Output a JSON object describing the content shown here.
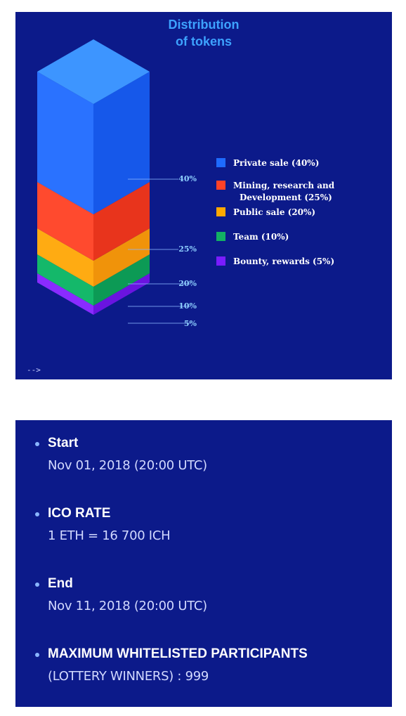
{
  "chart": {
    "title_line1": "Distribution",
    "title_line2": "of tokens",
    "stray_text": "-->"
  },
  "chart_data": {
    "type": "bar",
    "title": "Distribution of tokens",
    "categories": [
      "Private sale",
      "Mining, research and Development",
      "Public sale",
      "Team",
      "Bounty, rewards"
    ],
    "values": [
      40,
      25,
      20,
      10,
      5
    ],
    "value_labels": [
      "40%",
      "25%",
      "20%",
      "10%",
      "5%"
    ],
    "legend": [
      {
        "line1": "Private sale (40%)",
        "line2": "",
        "color": "#1e6bff"
      },
      {
        "line1": "Mining, research and",
        "line2": "Development (25%)",
        "color": "#ff4228"
      },
      {
        "line1": "Public sale (20%)",
        "line2": "",
        "color": "#ffa800"
      },
      {
        "line1": "Team (10%)",
        "line2": "",
        "color": "#13b064"
      },
      {
        "line1": "Bounty, rewards (5%)",
        "line2": "",
        "color": "#7a1cff"
      }
    ],
    "legend_position": "right",
    "colors": {
      "private": {
        "left": "#2a72ff",
        "right": "#1658ea",
        "top": "#3d95ff"
      },
      "mining": {
        "left": "#ff4a2e",
        "right": "#e8341c"
      },
      "public": {
        "left": "#ffab12",
        "right": "#f0930a"
      },
      "team": {
        "left": "#14b86a",
        "right": "#0c9a55"
      },
      "bounty": {
        "left": "#8a2bff",
        "right": "#6a14e0"
      },
      "label": "#8fd0ff",
      "leader": "#8ab4ff"
    }
  },
  "info": {
    "items": [
      {
        "label": "Start",
        "value": "Nov 01, 2018 (20:00 UTC)"
      },
      {
        "label": "ICO RATE",
        "value": "1 ETH = 16 700 ICH"
      },
      {
        "label": "End",
        "value": "Nov 11, 2018 (20:00 UTC)"
      },
      {
        "label": "MAXIMUM WHITELISTED PARTICIPANTS",
        "value": "(LOTTERY WINNERS) : 999"
      }
    ]
  }
}
